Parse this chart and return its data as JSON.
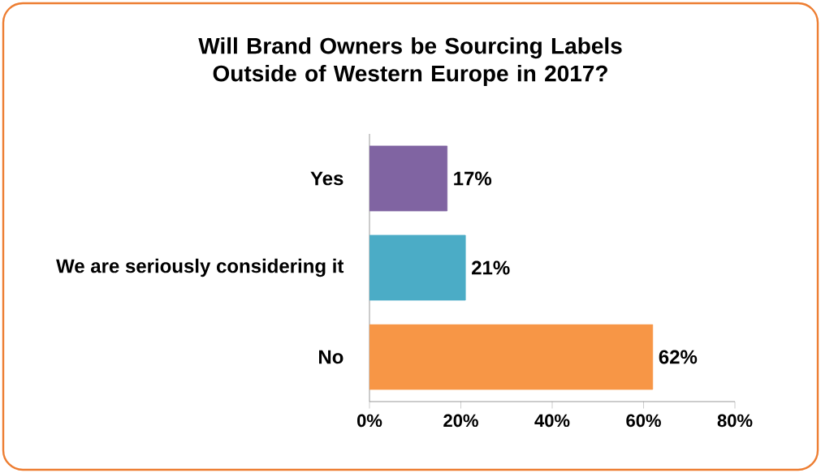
{
  "chart_data": {
    "type": "bar",
    "orientation": "horizontal",
    "title": "Will Brand Owners be Sourcing Labels Outside of Western Europe in 2017?",
    "categories": [
      "Yes",
      "We are seriously considering it",
      "No"
    ],
    "values": [
      17,
      21,
      62
    ],
    "colors": [
      "#8064a2",
      "#4bacc6",
      "#f79646"
    ],
    "value_labels": [
      "17%",
      "21%",
      "62%"
    ],
    "xlim": [
      0,
      80
    ],
    "xticks": [
      {
        "value": 0,
        "label": "0%"
      },
      {
        "value": 20,
        "label": "20%"
      },
      {
        "value": 40,
        "label": "40%"
      },
      {
        "value": 60,
        "label": "60%"
      },
      {
        "value": 80,
        "label": "80%"
      }
    ],
    "grid": false
  }
}
